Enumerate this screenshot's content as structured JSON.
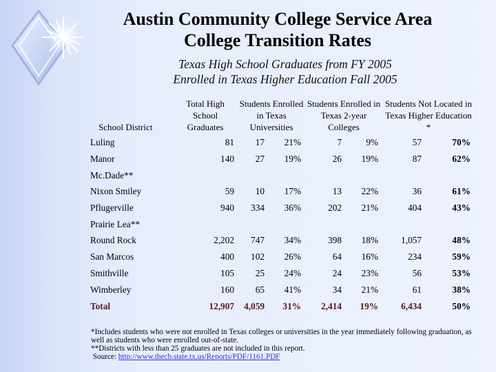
{
  "title": {
    "line1": "Austin Community College Service Area",
    "line2": "College Transition Rates"
  },
  "subtitle": {
    "line1": "Texas High School Graduates from FY 2005",
    "line2": "Enrolled in Texas Higher Education Fall 2005"
  },
  "table": {
    "headers": {
      "district": "School District",
      "graduates": "Total High School Graduates",
      "universities": "Students Enrolled in Texas Universities",
      "two_year": "Students Enrolled in Texas 2-year Colleges",
      "not_located": "Students Not Located in Texas Higher Education *"
    },
    "rows": [
      {
        "district": "Luling",
        "graduates": "81",
        "univ_n": "17",
        "univ_p": "21%",
        "two_n": "7",
        "two_p": "9%",
        "nl_n": "57",
        "nl_p": "70%"
      },
      {
        "district": "Manor",
        "graduates": "140",
        "univ_n": "27",
        "univ_p": "19%",
        "two_n": "26",
        "two_p": "19%",
        "nl_n": "87",
        "nl_p": "62%"
      },
      {
        "district": "Mc.Dade**",
        "graduates": "",
        "univ_n": "",
        "univ_p": "",
        "two_n": "",
        "two_p": "",
        "nl_n": "",
        "nl_p": ""
      },
      {
        "district": "Nixon Smiley",
        "graduates": "59",
        "univ_n": "10",
        "univ_p": "17%",
        "two_n": "13",
        "two_p": "22%",
        "nl_n": "36",
        "nl_p": "61%"
      },
      {
        "district": "Pflugerville",
        "graduates": "940",
        "univ_n": "334",
        "univ_p": "36%",
        "two_n": "202",
        "two_p": "21%",
        "nl_n": "404",
        "nl_p": "43%"
      },
      {
        "district": "Prairie Lea**",
        "graduates": "",
        "univ_n": "",
        "univ_p": "",
        "two_n": "",
        "two_p": "",
        "nl_n": "",
        "nl_p": ""
      },
      {
        "district": "Round Rock",
        "graduates": "2,202",
        "univ_n": "747",
        "univ_p": "34%",
        "two_n": "398",
        "two_p": "18%",
        "nl_n": "1,057",
        "nl_p": "48%"
      },
      {
        "district": "San Marcos",
        "graduates": "400",
        "univ_n": "102",
        "univ_p": "26%",
        "two_n": "64",
        "two_p": "16%",
        "nl_n": "234",
        "nl_p": "59%"
      },
      {
        "district": "Smithville",
        "graduates": "105",
        "univ_n": "25",
        "univ_p": "24%",
        "two_n": "24",
        "two_p": "23%",
        "nl_n": "56",
        "nl_p": "53%"
      },
      {
        "district": "Wimberley",
        "graduates": "160",
        "univ_n": "65",
        "univ_p": "41%",
        "two_n": "34",
        "two_p": "21%",
        "nl_n": "61",
        "nl_p": "38%"
      }
    ],
    "total": {
      "district": "Total",
      "graduates": "12,907",
      "univ_n": "4,059",
      "univ_p": "31%",
      "two_n": "2,414",
      "two_p": "19%",
      "nl_n": "6,434",
      "nl_p": "50%"
    }
  },
  "notes": {
    "line1": "*Includes students who were not enrolled in Texas colleges or universities in the year immediately following graduation, as well as students who were enrolled out-of-state.",
    "line2": "**Districts with less than 25 graduates are not included in this report.",
    "source_label": "Source: ",
    "source_link": "http://www.thecb.state.tx.us/Reports/PDF/1161.PDF"
  }
}
